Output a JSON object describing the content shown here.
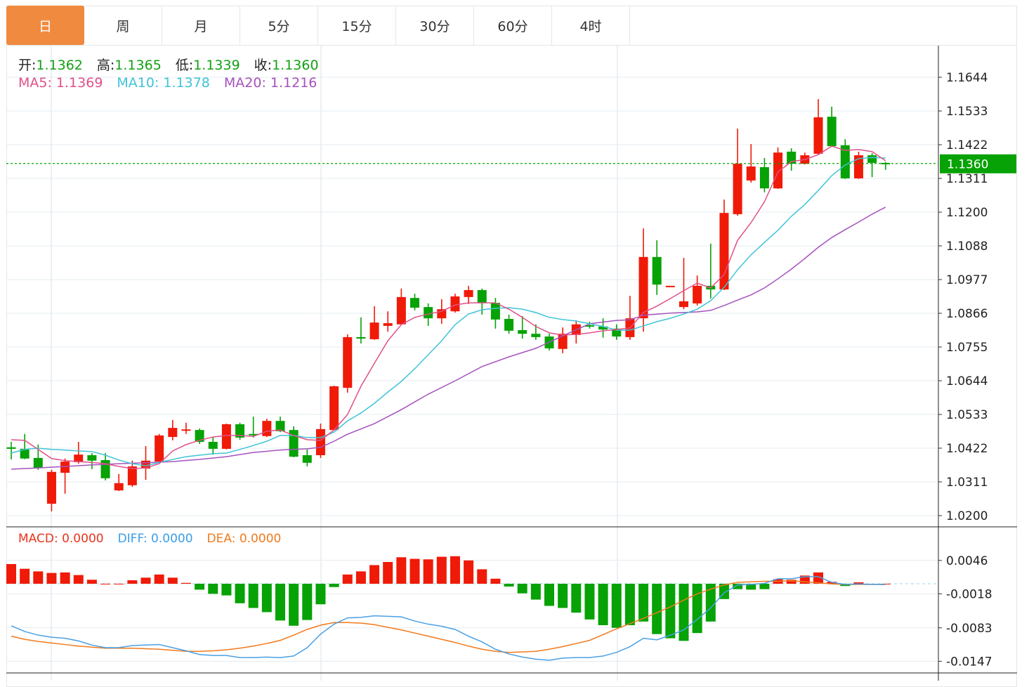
{
  "tabs": [
    {
      "label": "日",
      "active": true
    },
    {
      "label": "周",
      "active": false
    },
    {
      "label": "月",
      "active": false
    },
    {
      "label": "5分",
      "active": false
    },
    {
      "label": "15分",
      "active": false
    },
    {
      "label": "30分",
      "active": false
    },
    {
      "label": "60分",
      "active": false
    },
    {
      "label": "4时",
      "active": false
    }
  ],
  "ohlc_legend": {
    "open_label": "开:",
    "open": "1.1362",
    "high_label": "高:",
    "high": "1.1365",
    "low_label": "低:",
    "low": "1.1339",
    "close_label": "收:",
    "close": "1.1360"
  },
  "ma_legend": {
    "ma5": "MA5: 1.1369",
    "ma10": "MA10: 1.1378",
    "ma20": "MA20: 1.1216"
  },
  "macd_legend": {
    "macd": "MACD: 0.0000",
    "diff": "DIFF: 0.0000",
    "dea": "DEA: 0.0000"
  },
  "colors": {
    "up": "#f01a08",
    "down": "#06a206",
    "ma5": "#e0508a",
    "ma10": "#40c4d8",
    "ma20": "#a552bd",
    "diff": "#4aa0e4",
    "dea": "#f07a1e",
    "active_tab": "#f08a3f",
    "last_price": "#06a206"
  },
  "chart_data": [
    {
      "type": "candlestick",
      "title": "",
      "ylim": [
        1.02,
        1.1644
      ],
      "yticks": [
        "1.1644",
        "1.1533",
        "1.1422",
        "1.1311",
        "1.1200",
        "1.1088",
        "1.0977",
        "1.0866",
        "1.0755",
        "1.0644",
        "1.0533",
        "1.0422",
        "1.0311",
        "1.0200"
      ],
      "last_price": 1.136,
      "last_price_label": "1.1360",
      "ohlc_fields": [
        "open",
        "high",
        "low",
        "close"
      ],
      "ohlc": [
        [
          1.0425,
          1.0443,
          1.0385,
          1.042
        ],
        [
          1.042,
          1.0469,
          1.0386,
          1.0388
        ],
        [
          1.039,
          1.0434,
          1.0351,
          1.0357
        ],
        [
          1.0239,
          1.0351,
          1.0214,
          1.0344
        ],
        [
          1.0341,
          1.0388,
          1.0272,
          1.0378
        ],
        [
          1.0376,
          1.0443,
          1.0371,
          1.0401
        ],
        [
          1.0399,
          1.0406,
          1.0353,
          1.0381
        ],
        [
          1.0383,
          1.0406,
          1.0316,
          1.0323
        ],
        [
          1.0283,
          1.0337,
          1.0281,
          1.0307
        ],
        [
          1.03,
          1.0381,
          1.0295,
          1.0362
        ],
        [
          1.0355,
          1.0429,
          1.0318,
          1.0381
        ],
        [
          1.0378,
          1.0469,
          1.0376,
          1.0464
        ],
        [
          1.0459,
          1.0515,
          1.0448,
          1.0489
        ],
        [
          1.0481,
          1.0506,
          1.0469,
          1.0484
        ],
        [
          1.0482,
          1.0487,
          1.0436,
          1.0443
        ],
        [
          1.0443,
          1.0459,
          1.0401,
          1.042
        ],
        [
          1.042,
          1.0503,
          1.0418,
          1.0501
        ],
        [
          1.0501,
          1.0506,
          1.045,
          1.0457
        ],
        [
          1.0469,
          1.0526,
          1.0457,
          1.0466
        ],
        [
          1.0462,
          1.0519,
          1.0459,
          1.0512
        ],
        [
          1.0512,
          1.0526,
          1.0475,
          1.0478
        ],
        [
          1.0482,
          1.0494,
          1.0392,
          1.0394
        ],
        [
          1.0399,
          1.0418,
          1.0362,
          1.0374
        ],
        [
          1.0399,
          1.0503,
          1.039,
          1.0485
        ],
        [
          1.0482,
          1.0628,
          1.048,
          1.0626
        ],
        [
          1.0621,
          1.0797,
          1.0605,
          1.0788
        ],
        [
          1.0788,
          1.0853,
          1.0767,
          1.0783
        ],
        [
          1.0781,
          1.089,
          1.0779,
          1.0836
        ],
        [
          1.0825,
          1.0873,
          1.0806,
          1.0834
        ],
        [
          1.083,
          1.0948,
          1.0828,
          1.092
        ],
        [
          1.0917,
          1.0931,
          1.0876,
          1.0885
        ],
        [
          1.0887,
          1.0899,
          1.0825,
          1.085
        ],
        [
          1.085,
          1.0913,
          1.0832,
          1.088
        ],
        [
          1.0873,
          1.0931,
          1.0869,
          1.0922
        ],
        [
          1.092,
          1.0957,
          1.0897,
          1.0943
        ],
        [
          1.0943,
          1.0948,
          1.0862,
          1.0901
        ],
        [
          1.0901,
          1.0917,
          1.0816,
          1.0846
        ],
        [
          1.0848,
          1.0862,
          1.0799,
          1.0809
        ],
        [
          1.0811,
          1.0857,
          1.0783,
          1.0799
        ],
        [
          1.0799,
          1.083,
          1.0779,
          1.0788
        ],
        [
          1.079,
          1.0799,
          1.0744,
          1.0751
        ],
        [
          1.0749,
          1.082,
          1.0735,
          1.0799
        ],
        [
          1.0795,
          1.0843,
          1.0767,
          1.083
        ],
        [
          1.0827,
          1.0839,
          1.0816,
          1.0825
        ],
        [
          1.0823,
          1.085,
          1.0786,
          1.0813
        ],
        [
          1.0816,
          1.083,
          1.0779,
          1.079
        ],
        [
          1.0788,
          1.0924,
          1.0779,
          1.085
        ],
        [
          1.085,
          1.1146,
          1.0806,
          1.1052
        ],
        [
          1.1052,
          1.1107,
          1.0927,
          1.0961
        ],
        [
          1.0957,
          1.0957,
          1.0957,
          1.0957
        ],
        [
          1.0887,
          1.1049,
          1.088,
          1.0906
        ],
        [
          1.0899,
          1.0991,
          1.0892,
          1.0957
        ],
        [
          1.0957,
          1.1096,
          1.0915,
          1.0945
        ],
        [
          1.0945,
          1.1241,
          1.0943,
          1.1197
        ],
        [
          1.1193,
          1.1475,
          1.1188,
          1.1359
        ],
        [
          1.1304,
          1.1424,
          1.1297,
          1.135
        ],
        [
          1.1348,
          1.1378,
          1.1265,
          1.1278
        ],
        [
          1.1278,
          1.1413,
          1.1276,
          1.1396
        ],
        [
          1.1399,
          1.141,
          1.1336,
          1.1359
        ],
        [
          1.1359,
          1.1396,
          1.1357,
          1.1387
        ],
        [
          1.1392,
          1.1572,
          1.139,
          1.1512
        ],
        [
          1.1514,
          1.1547,
          1.1415,
          1.1417
        ],
        [
          1.142,
          1.144,
          1.1309,
          1.1311
        ],
        [
          1.1311,
          1.1399,
          1.1309,
          1.1387
        ],
        [
          1.1387,
          1.1394,
          1.1315,
          1.1362
        ],
        [
          1.1362,
          1.1365,
          1.1339,
          1.136
        ]
      ],
      "ma5": [
        1.045,
        1.0448,
        1.0418,
        1.0388,
        1.0381,
        1.0378,
        1.0375,
        1.0371,
        1.0362,
        1.0355,
        1.0357,
        1.0371,
        1.0413,
        1.0434,
        1.0448,
        1.0459,
        1.0464,
        1.0464,
        1.0461,
        1.0478,
        1.0482,
        1.0464,
        1.045,
        1.0448,
        1.0482,
        1.0533,
        1.0626,
        1.0702,
        1.0776,
        1.0829,
        1.0853,
        1.0864,
        1.0873,
        1.0894,
        1.0901,
        1.0901,
        1.0901,
        1.088,
        1.0853,
        1.0823,
        1.0802,
        1.0795,
        1.0797,
        1.0802,
        1.0809,
        1.0813,
        1.0818,
        1.0869,
        1.089,
        1.0915,
        1.0941,
        1.0966,
        1.095,
        1.0994,
        1.1107,
        1.1165,
        1.1234,
        1.1332,
        1.1366,
        1.1373,
        1.1389,
        1.1417,
        1.1403,
        1.1406,
        1.1399,
        1.1369
      ],
      "ma10": [
        1.0406,
        1.0418,
        1.0422,
        1.0418,
        1.0416,
        1.0413,
        1.0411,
        1.0399,
        1.0383,
        1.0371,
        1.0364,
        1.0375,
        1.0385,
        1.0394,
        1.0399,
        1.0404,
        1.0406,
        1.0418,
        1.0431,
        1.0445,
        1.0464,
        1.0464,
        1.0457,
        1.0457,
        1.0475,
        1.0512,
        1.0538,
        1.057,
        1.0607,
        1.0642,
        1.0684,
        1.073,
        1.0776,
        1.0829,
        1.0864,
        1.0878,
        1.0883,
        1.0885,
        1.088,
        1.0869,
        1.0853,
        1.0846,
        1.0841,
        1.0832,
        1.0823,
        1.0811,
        1.0811,
        1.0825,
        1.0839,
        1.085,
        1.0864,
        1.088,
        1.0908,
        1.0952,
        1.101,
        1.1059,
        1.11,
        1.114,
        1.1186,
        1.1225,
        1.1271,
        1.132,
        1.1355,
        1.1376,
        1.138,
        1.1378
      ],
      "ma20": [
        [
          0,
          1.0353
        ],
        [
          2,
          1.0357
        ],
        [
          4,
          1.0362
        ],
        [
          6,
          1.0367
        ],
        [
          8,
          1.0371
        ],
        [
          10,
          1.0374
        ],
        [
          12,
          1.0378
        ],
        [
          14,
          1.0385
        ],
        [
          16,
          1.0394
        ],
        [
          18,
          1.0408
        ],
        [
          20,
          1.0416
        ],
        [
          22,
          1.042
        ],
        [
          23,
          1.0425
        ],
        [
          24,
          1.0445
        ],
        [
          25,
          1.0468
        ],
        [
          27,
          1.0503
        ],
        [
          29,
          1.0549
        ],
        [
          31,
          1.06
        ],
        [
          33,
          1.0644
        ],
        [
          35,
          1.0691
        ],
        [
          37,
          1.0723
        ],
        [
          39,
          1.0751
        ],
        [
          41,
          1.0792
        ],
        [
          43,
          1.0832
        ],
        [
          45,
          1.0843
        ],
        [
          46,
          1.0845
        ],
        [
          47,
          1.086
        ],
        [
          49,
          1.0867
        ],
        [
          51,
          1.0871
        ],
        [
          52,
          1.0876
        ],
        [
          53,
          1.0892
        ],
        [
          54,
          1.091
        ],
        [
          55,
          1.0927
        ],
        [
          56,
          1.095
        ],
        [
          57,
          1.098
        ],
        [
          58,
          1.1012
        ],
        [
          59,
          1.1047
        ],
        [
          60,
          1.1084
        ],
        [
          61,
          1.1116
        ],
        [
          62,
          1.1142
        ],
        [
          63,
          1.1167
        ],
        [
          64,
          1.1193
        ],
        [
          65,
          1.1216
        ]
      ]
    },
    {
      "type": "macd",
      "yticks": [
        "0.0046",
        "-0.0018",
        "-0.0083",
        "-0.0147"
      ],
      "ytick_values": [
        0.0046,
        -0.0018,
        -0.0083,
        -0.0147
      ],
      "histogram": [
        0.0039,
        0.003,
        0.0025,
        0.0022,
        0.0023,
        0.0018,
        0.0009,
        0.0,
        0.0,
        0.0008,
        0.0013,
        0.0019,
        0.0013,
        0.0003,
        -0.001,
        -0.0018,
        -0.0021,
        -0.0036,
        -0.0045,
        -0.0053,
        -0.0069,
        -0.0079,
        -0.0068,
        -0.0038,
        -0.0005,
        0.0019,
        0.0025,
        0.0037,
        0.0043,
        0.0052,
        0.0049,
        0.0048,
        0.0053,
        0.0054,
        0.0046,
        0.0029,
        0.0011,
        -0.0004,
        -0.0017,
        -0.0029,
        -0.0041,
        -0.0045,
        -0.0054,
        -0.0067,
        -0.0078,
        -0.0083,
        -0.0078,
        -0.0071,
        -0.0095,
        -0.0103,
        -0.0108,
        -0.0093,
        -0.0071,
        -0.0028,
        -0.0009,
        -0.001,
        -0.0009,
        0.001,
        0.0009,
        0.0017,
        0.0023,
        0.0005,
        -0.0003,
        0.0004,
        0.0001,
        0.0
      ],
      "diff": [
        -0.0079,
        -0.009,
        -0.0097,
        -0.0101,
        -0.0103,
        -0.0108,
        -0.0116,
        -0.0121,
        -0.0121,
        -0.0117,
        -0.0116,
        -0.0115,
        -0.0121,
        -0.0127,
        -0.0134,
        -0.0136,
        -0.0136,
        -0.014,
        -0.014,
        -0.0139,
        -0.014,
        -0.0137,
        -0.0121,
        -0.0095,
        -0.0076,
        -0.0064,
        -0.0063,
        -0.006,
        -0.0061,
        -0.0062,
        -0.007,
        -0.0076,
        -0.008,
        -0.0086,
        -0.0099,
        -0.011,
        -0.0124,
        -0.0133,
        -0.0139,
        -0.0143,
        -0.0145,
        -0.0141,
        -0.014,
        -0.014,
        -0.0137,
        -0.013,
        -0.0119,
        -0.0103,
        -0.0106,
        -0.0097,
        -0.0087,
        -0.0067,
        -0.0045,
        -0.0016,
        -0.0001,
        0.0,
        0.0002,
        0.0011,
        0.0011,
        0.0015,
        0.0015,
        0.0004,
        0.0,
        0.0001,
        0.0,
        0.0
      ],
      "dea": [
        -0.0099,
        -0.0105,
        -0.0109,
        -0.0112,
        -0.0115,
        -0.0118,
        -0.012,
        -0.0122,
        -0.0122,
        -0.0122,
        -0.0123,
        -0.0124,
        -0.0126,
        -0.0128,
        -0.0128,
        -0.0127,
        -0.0125,
        -0.0122,
        -0.0118,
        -0.0113,
        -0.0107,
        -0.0097,
        -0.0086,
        -0.0078,
        -0.0073,
        -0.0073,
        -0.0074,
        -0.0077,
        -0.0082,
        -0.0087,
        -0.0093,
        -0.0099,
        -0.0105,
        -0.0111,
        -0.0118,
        -0.0124,
        -0.0128,
        -0.013,
        -0.0129,
        -0.0128,
        -0.0124,
        -0.0119,
        -0.0113,
        -0.0107,
        -0.0096,
        -0.0085,
        -0.0075,
        -0.0065,
        -0.0054,
        -0.0043,
        -0.003,
        -0.0018,
        -0.0009,
        -0.0001,
        0.0004,
        0.0005,
        0.0006,
        0.0006,
        0.0007,
        0.0005,
        0.0003,
        0.0001,
        0.0,
        0.0,
        0.0,
        0.0
      ]
    }
  ]
}
